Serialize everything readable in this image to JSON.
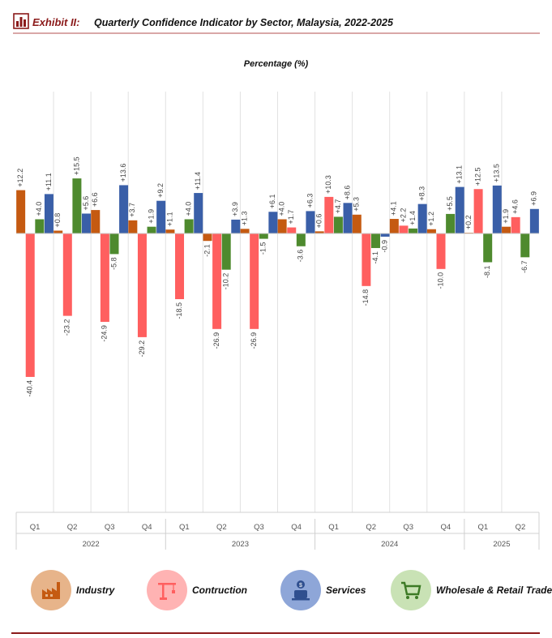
{
  "header": {
    "exhibit": "Exhibit II:",
    "title": "Quarterly Confidence Indicator by Sector, Malaysia, 2022-2025"
  },
  "colors": {
    "industry": "#c55a11",
    "construction": "#ff5f5f",
    "services": "#3a5fa8",
    "wholesale": "#4e8a2e"
  },
  "legend": [
    {
      "label": "Industry",
      "icon": "factory-icon",
      "bg": "#e7b48a"
    },
    {
      "label": "Contruction",
      "icon": "crane-icon",
      "bg": "#ffb3b3"
    },
    {
      "label": "Services",
      "icon": "services-icon",
      "bg": "#8ea6d8"
    },
    {
      "label": "Wholesale & Retail Trade",
      "icon": "cart-icon",
      "bg": "#c9e2b5"
    }
  ],
  "chart_data": {
    "type": "bar",
    "ylabel": "Percentage (%)",
    "categories": [
      "Q1",
      "Q2",
      "Q3",
      "Q4",
      "Q1",
      "Q2",
      "Q3",
      "Q4",
      "Q1",
      "Q2",
      "Q3",
      "Q4",
      "Q1",
      "Q2"
    ],
    "years": [
      {
        "label": "2022",
        "quarters": 4
      },
      {
        "label": "2023",
        "quarters": 4
      },
      {
        "label": "2024",
        "quarters": 4
      },
      {
        "label": "2025",
        "quarters": 2
      }
    ],
    "ylim": [
      -40.4,
      15.5
    ],
    "grid": "vertical separators",
    "series": [
      {
        "name": "Industry",
        "color": "#c55a11",
        "values": [
          12.2,
          0.8,
          6.6,
          3.7,
          1.1,
          -2.1,
          1.3,
          4.0,
          0.6,
          5.3,
          4.1,
          1.2,
          0.2,
          1.9
        ],
        "labels": [
          "+12.2",
          "+0.8",
          "+6.6",
          "+3.7",
          "+1.1",
          "-2.1",
          "+1.3",
          "+4.0",
          "+0.6",
          "+5.3",
          "+4.1",
          "+1.2",
          "+0.2",
          "+1.9"
        ]
      },
      {
        "name": "Contruction",
        "color": "#ff5f5f",
        "values": [
          -40.4,
          -23.2,
          -24.9,
          -29.2,
          -18.5,
          -26.9,
          -26.9,
          1.7,
          10.3,
          -14.8,
          2.2,
          -10.0,
          12.5,
          4.6
        ],
        "labels": [
          "-40.4",
          "-23.2",
          "-24.9",
          "-29.2",
          "-18.5",
          "-26.9",
          "-26.9",
          "+1.7",
          "+10.3",
          "-14.8",
          "+2.2",
          "-10.0",
          "+12.5",
          "+4.6"
        ]
      },
      {
        "name": "Wholesale & Retail Trade",
        "color": "#4e8a2e",
        "values": [
          4.0,
          15.5,
          -5.8,
          1.9,
          4.0,
          -10.2,
          -1.5,
          -3.6,
          4.7,
          -4.1,
          1.4,
          5.5,
          -8.1,
          -6.7
        ],
        "labels": [
          "+4.0",
          "+15.5",
          "-5.8",
          "+1.9",
          "+4.0",
          "-10.2",
          "-1.5",
          "-3.6",
          "+4.7",
          "-4.1",
          "+1.4",
          "+5.5",
          "-8.1",
          "-6.7"
        ]
      },
      {
        "name": "Services",
        "color": "#3a5fa8",
        "values": [
          11.1,
          5.6,
          13.6,
          9.2,
          11.4,
          3.9,
          6.1,
          6.3,
          8.6,
          -0.9,
          8.3,
          13.1,
          13.5,
          6.9
        ],
        "labels": [
          "+11.1",
          "+5.6",
          "+13.6",
          "+9.2",
          "+11.4",
          "+3.9",
          "+6.1",
          "+6.3",
          "+8.6",
          "-0.9",
          "+8.3",
          "+13.1",
          "+13.5",
          "+6.9"
        ]
      }
    ]
  }
}
